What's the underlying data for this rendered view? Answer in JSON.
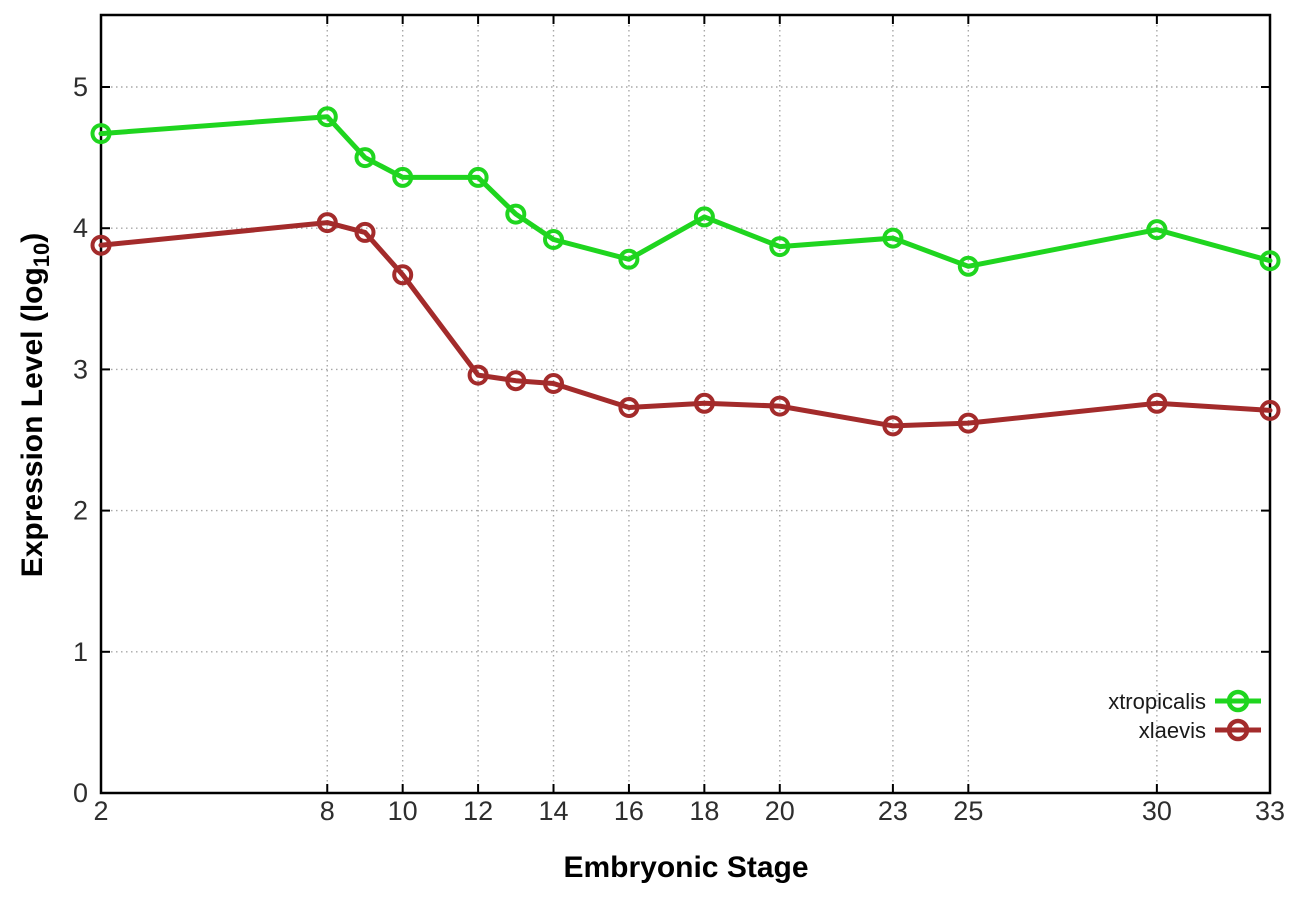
{
  "figure": {
    "background": "#ffffff",
    "border_color": "#000000",
    "grid_color": "#a8a8a8",
    "tick_color": "#000000",
    "tick_label_color": "#2e2e2e",
    "legend_text_color": "#1a1a1a"
  },
  "chart_data": {
    "type": "line",
    "title": "",
    "xlabel": "Embryonic Stage",
    "ylabel": {
      "prefix": "Expression Level (log",
      "sub": "10",
      "suffix": ")"
    },
    "x": [
      2,
      8,
      9,
      10,
      12,
      13,
      14,
      16,
      18,
      20,
      23,
      25,
      30,
      33
    ],
    "xtick_labels": [
      2,
      8,
      10,
      12,
      14,
      16,
      18,
      20,
      23,
      25,
      30,
      33
    ],
    "ytick_labels": [
      0,
      1,
      2,
      3,
      4,
      5
    ],
    "xlim": [
      2,
      33
    ],
    "ylim": [
      0,
      5.51
    ],
    "grid": true,
    "legend_position": "bottom-right",
    "series": [
      {
        "name": "xtropicalis",
        "color": "#1fd51f",
        "marker": "open-circle",
        "values": [
          4.67,
          4.79,
          4.5,
          4.36,
          4.36,
          4.1,
          3.92,
          3.78,
          4.08,
          3.87,
          3.93,
          3.73,
          3.99,
          3.77
        ]
      },
      {
        "name": "xlaevis",
        "color": "#a32b2b",
        "marker": "open-circle",
        "values": [
          3.88,
          4.04,
          3.97,
          3.67,
          2.96,
          2.92,
          2.9,
          2.73,
          2.76,
          2.74,
          2.6,
          2.62,
          2.76,
          2.71
        ]
      }
    ]
  }
}
